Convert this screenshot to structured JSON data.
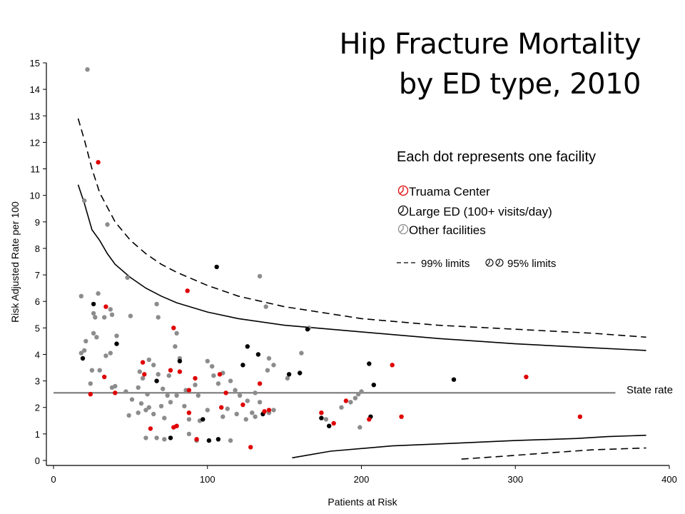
{
  "chart_data": {
    "type": "scatter",
    "title": "Hip Fracture Mortality",
    "subtitle": "by ED type, 2010",
    "xlabel": "Patients at Risk",
    "ylabel": "Risk Adjusted Rate per 100",
    "xlim": [
      0,
      400
    ],
    "ylim": [
      0,
      15
    ],
    "xticks": [
      0,
      100,
      200,
      300,
      400
    ],
    "yticks": [
      0,
      1,
      2,
      3,
      4,
      5,
      6,
      7,
      8,
      9,
      10,
      11,
      12,
      13,
      14,
      15
    ],
    "state_rate": {
      "label": "State rate",
      "value": 2.55,
      "x_range": [
        0,
        365
      ]
    },
    "legend": {
      "heading": "Each dot represents one facility",
      "items": [
        {
          "label": "Truama Center",
          "color": "#e00000"
        },
        {
          "label": "Large ED (100+ visits/day)",
          "color": "#000000"
        },
        {
          "label": "Other facilities",
          "color": "#8c8c8c"
        }
      ],
      "limits_99": "99% limits",
      "limits_95": "95% limits"
    },
    "limits": {
      "upper_99": [
        [
          16,
          12.9
        ],
        [
          20,
          12.1
        ],
        [
          25,
          11.0
        ],
        [
          30,
          10.1
        ],
        [
          40,
          9.0
        ],
        [
          50,
          8.3
        ],
        [
          60,
          7.8
        ],
        [
          70,
          7.4
        ],
        [
          80,
          7.1
        ],
        [
          100,
          6.6
        ],
        [
          120,
          6.2
        ],
        [
          150,
          5.8
        ],
        [
          200,
          5.35
        ],
        [
          250,
          5.1
        ],
        [
          300,
          4.95
        ],
        [
          350,
          4.8
        ],
        [
          385,
          4.65
        ]
      ],
      "upper_95": [
        [
          16,
          10.4
        ],
        [
          20,
          9.7
        ],
        [
          25,
          8.7
        ],
        [
          30,
          8.3
        ],
        [
          35,
          7.8
        ],
        [
          40,
          7.4
        ],
        [
          50,
          6.9
        ],
        [
          60,
          6.5
        ],
        [
          70,
          6.2
        ],
        [
          80,
          5.95
        ],
        [
          100,
          5.6
        ],
        [
          120,
          5.35
        ],
        [
          150,
          5.1
        ],
        [
          200,
          4.85
        ],
        [
          250,
          4.6
        ],
        [
          300,
          4.4
        ],
        [
          350,
          4.25
        ],
        [
          385,
          4.15
        ]
      ],
      "lower_95": [
        [
          155,
          0.1
        ],
        [
          180,
          0.35
        ],
        [
          220,
          0.55
        ],
        [
          260,
          0.65
        ],
        [
          300,
          0.75
        ],
        [
          340,
          0.83
        ],
        [
          360,
          0.9
        ],
        [
          385,
          0.95
        ]
      ],
      "lower_99": [
        [
          265,
          0.05
        ],
        [
          290,
          0.15
        ],
        [
          320,
          0.28
        ],
        [
          350,
          0.4
        ],
        [
          385,
          0.47
        ]
      ]
    },
    "series": [
      {
        "name": "Truama Center",
        "color": "#e00000",
        "points": [
          [
            29,
            11.25
          ],
          [
            34,
            5.8
          ],
          [
            24,
            2.5
          ],
          [
            33,
            3.15
          ],
          [
            40,
            2.55
          ],
          [
            58,
            3.7
          ],
          [
            59,
            3.25
          ],
          [
            63,
            1.2
          ],
          [
            78,
            5.0
          ],
          [
            78,
            1.25
          ],
          [
            80,
            1.3
          ],
          [
            82,
            3.35
          ],
          [
            76,
            3.4
          ],
          [
            87,
            6.4
          ],
          [
            88,
            2.65
          ],
          [
            88,
            1.8
          ],
          [
            92,
            3.1
          ],
          [
            93,
            0.8
          ],
          [
            108,
            3.25
          ],
          [
            109,
            2.0
          ],
          [
            112,
            2.55
          ],
          [
            123,
            2.1
          ],
          [
            128,
            0.5
          ],
          [
            134,
            2.9
          ],
          [
            137,
            1.85
          ],
          [
            140,
            1.9
          ],
          [
            174,
            1.8
          ],
          [
            182,
            1.4
          ],
          [
            190,
            2.25
          ],
          [
            205,
            1.55
          ],
          [
            220,
            3.6
          ],
          [
            226,
            1.65
          ],
          [
            307,
            3.15
          ],
          [
            342,
            1.65
          ]
        ]
      },
      {
        "name": "Large ED (100+ visits/day)",
        "color": "#000000",
        "points": [
          [
            19,
            3.85
          ],
          [
            26,
            5.9
          ],
          [
            41,
            4.4
          ],
          [
            67,
            3.0
          ],
          [
            76,
            0.85
          ],
          [
            82,
            3.75
          ],
          [
            97,
            1.55
          ],
          [
            101,
            0.75
          ],
          [
            106,
            7.3
          ],
          [
            107,
            0.8
          ],
          [
            123,
            3.6
          ],
          [
            126,
            4.3
          ],
          [
            133,
            4.0
          ],
          [
            136,
            1.75
          ],
          [
            153,
            3.25
          ],
          [
            160,
            3.3
          ],
          [
            165,
            4.95
          ],
          [
            174,
            1.6
          ],
          [
            179,
            1.3
          ],
          [
            205,
            3.65
          ],
          [
            206,
            1.65
          ],
          [
            208,
            2.85
          ],
          [
            260,
            3.05
          ]
        ]
      },
      {
        "name": "Other facilities",
        "color": "#8c8c8c",
        "points": [
          [
            22,
            14.75
          ],
          [
            20,
            9.8
          ],
          [
            35,
            8.9
          ],
          [
            18,
            6.2
          ],
          [
            29,
            6.3
          ],
          [
            26,
            5.55
          ],
          [
            33,
            5.4
          ],
          [
            37,
            5.7
          ],
          [
            38,
            5.5
          ],
          [
            27,
            5.4
          ],
          [
            26,
            4.8
          ],
          [
            28,
            4.65
          ],
          [
            21,
            4.5
          ],
          [
            34,
            3.95
          ],
          [
            37,
            4.05
          ],
          [
            41,
            4.7
          ],
          [
            25,
            3.4
          ],
          [
            30,
            3.4
          ],
          [
            18,
            4.05
          ],
          [
            20,
            4.15
          ],
          [
            24,
            2.9
          ],
          [
            38,
            2.75
          ],
          [
            40,
            2.8
          ],
          [
            48,
            6.9
          ],
          [
            50,
            5.45
          ],
          [
            67,
            5.9
          ],
          [
            68,
            5.4
          ],
          [
            80,
            4.8
          ],
          [
            79,
            4.3
          ],
          [
            82,
            3.85
          ],
          [
            62,
            3.8
          ],
          [
            65,
            3.6
          ],
          [
            56,
            3.35
          ],
          [
            58,
            3.1
          ],
          [
            68,
            3.25
          ],
          [
            75,
            3.2
          ],
          [
            55,
            2.75
          ],
          [
            61,
            2.5
          ],
          [
            71,
            2.7
          ],
          [
            74,
            2.45
          ],
          [
            80,
            2.45
          ],
          [
            86,
            2.65
          ],
          [
            92,
            2.85
          ],
          [
            94,
            2.45
          ],
          [
            47,
            2.6
          ],
          [
            51,
            2.3
          ],
          [
            57,
            2.15
          ],
          [
            62,
            2.0
          ],
          [
            70,
            2.05
          ],
          [
            76,
            2.2
          ],
          [
            85,
            2.05
          ],
          [
            60,
            1.9
          ],
          [
            49,
            1.7
          ],
          [
            55,
            1.8
          ],
          [
            65,
            1.75
          ],
          [
            72,
            1.6
          ],
          [
            88,
            1.55
          ],
          [
            95,
            1.5
          ],
          [
            100,
            1.9
          ],
          [
            104,
            3.2
          ],
          [
            107,
            2.9
          ],
          [
            110,
            3.3
          ],
          [
            115,
            3.0
          ],
          [
            118,
            2.65
          ],
          [
            121,
            2.45
          ],
          [
            126,
            2.25
          ],
          [
            131,
            2.55
          ],
          [
            134,
            2.2
          ],
          [
            113,
            1.95
          ],
          [
            119,
            1.75
          ],
          [
            125,
            1.55
          ],
          [
            129,
            1.8
          ],
          [
            131,
            1.65
          ],
          [
            139,
            3.4
          ],
          [
            140,
            3.85
          ],
          [
            143,
            3.6
          ],
          [
            134,
            6.95
          ],
          [
            138,
            5.8
          ],
          [
            161,
            4.05
          ],
          [
            166,
            5.0
          ],
          [
            152,
            3.1
          ],
          [
            140,
            1.8
          ],
          [
            143,
            1.9
          ],
          [
            115,
            0.75
          ],
          [
            93,
            0.75
          ],
          [
            60,
            0.85
          ],
          [
            67,
            0.85
          ],
          [
            72,
            0.8
          ],
          [
            88,
            1.0
          ],
          [
            100,
            3.75
          ],
          [
            103,
            3.55
          ],
          [
            110,
            1.65
          ],
          [
            177,
            1.55
          ],
          [
            199,
            1.25
          ],
          [
            200,
            2.6
          ],
          [
            198,
            2.5
          ],
          [
            196,
            2.35
          ],
          [
            193,
            2.2
          ],
          [
            187,
            2.0
          ]
        ]
      }
    ]
  }
}
